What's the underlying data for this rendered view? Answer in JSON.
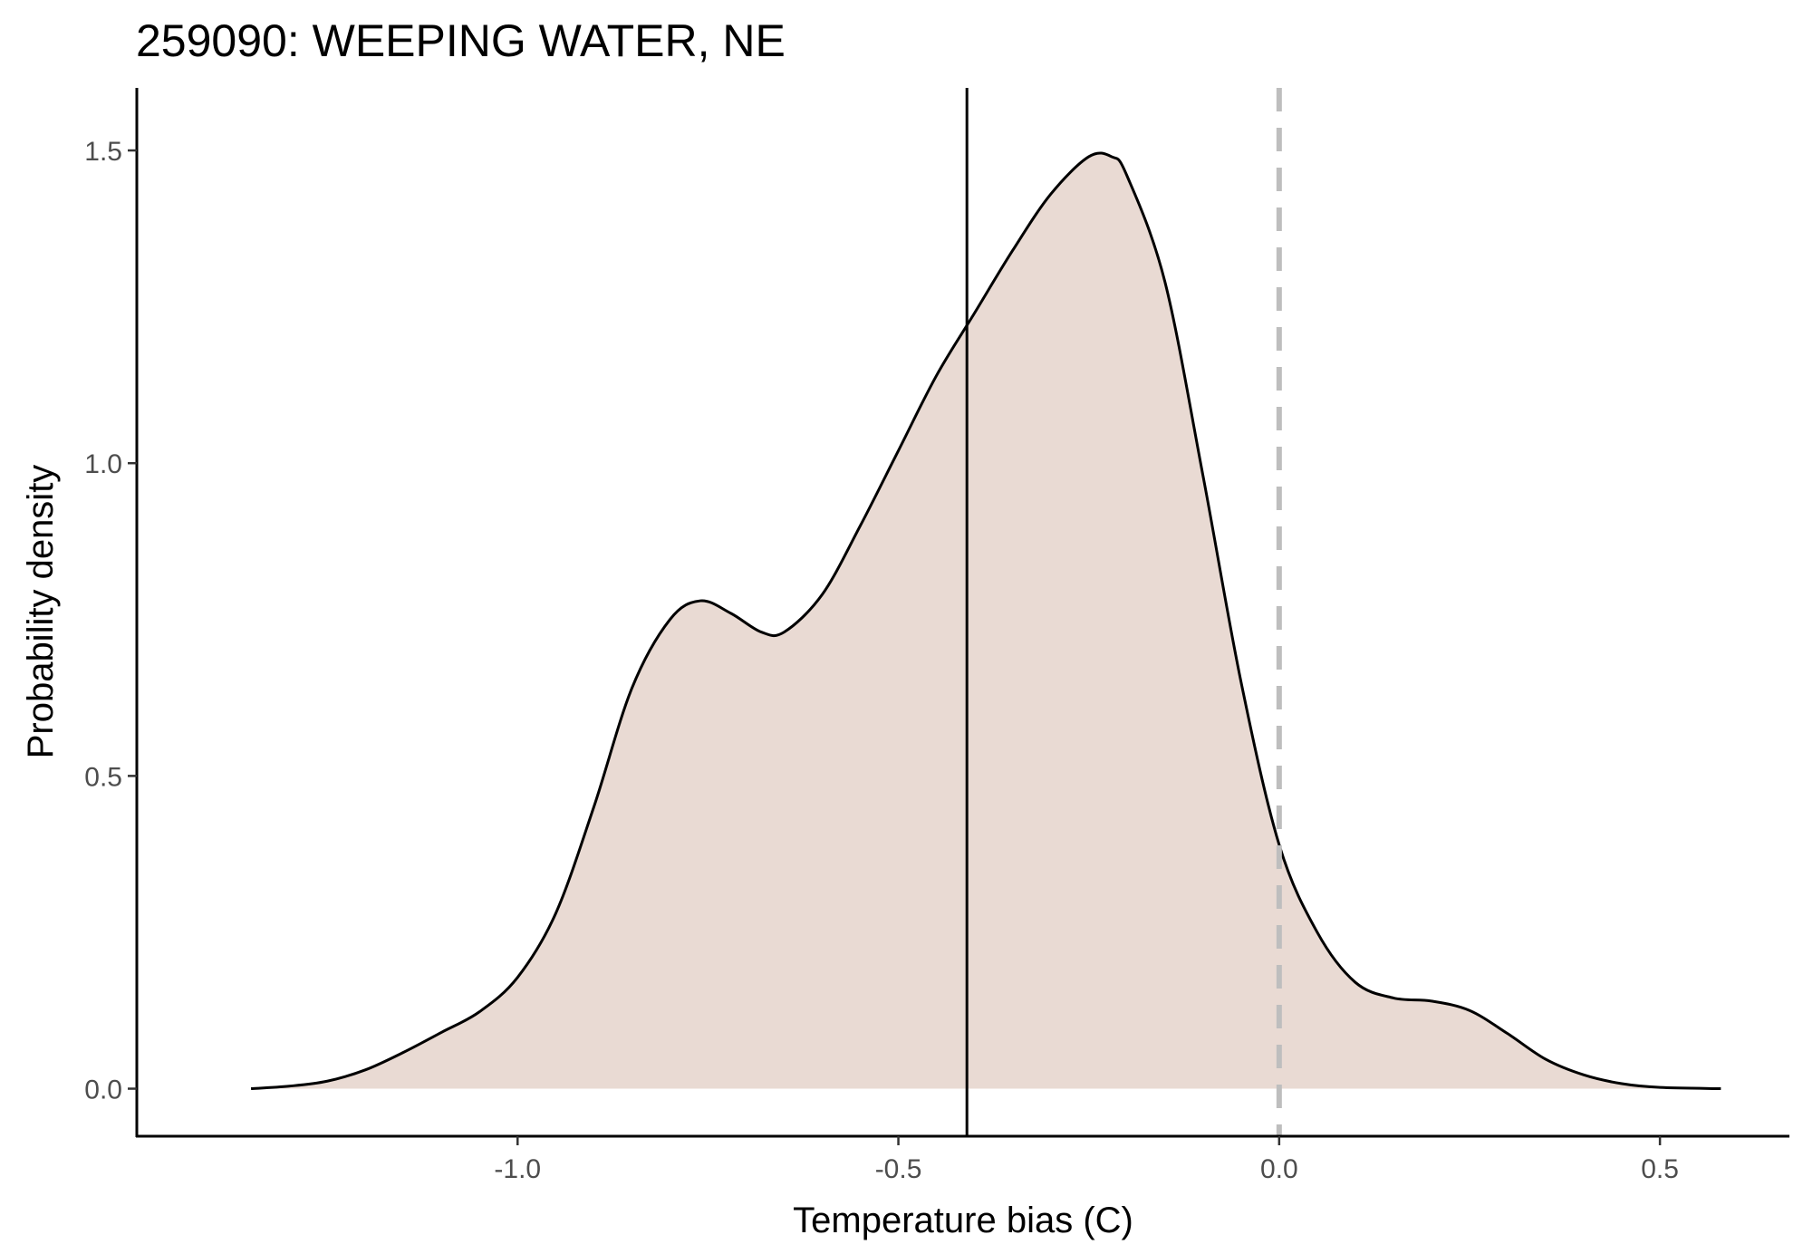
{
  "chart_data": {
    "type": "area",
    "title": "259090: WEEPING WATER, NE",
    "xlabel": "Temperature bias (C)",
    "ylabel": "Probability density",
    "xlim": [
      -1.5,
      0.67
    ],
    "ylim": [
      -0.076,
      1.6
    ],
    "x_ticks": [
      -1.0,
      -0.5,
      0.0,
      0.5
    ],
    "x_tick_labels": [
      "-1.0",
      "-0.5",
      "0.0",
      "0.5"
    ],
    "y_ticks": [
      0.0,
      0.5,
      1.0,
      1.5
    ],
    "y_tick_labels": [
      "0.0",
      "0.5",
      "1.0",
      "1.5"
    ],
    "grid": false,
    "fill_color": "#e9dad3",
    "line_color": "#000000",
    "series": [
      {
        "name": "density",
        "x": [
          -1.35,
          -1.3,
          -1.25,
          -1.2,
          -1.15,
          -1.1,
          -1.05,
          -1.0,
          -0.95,
          -0.9,
          -0.85,
          -0.8,
          -0.76,
          -0.72,
          -0.68,
          -0.65,
          -0.6,
          -0.55,
          -0.5,
          -0.45,
          -0.4,
          -0.35,
          -0.3,
          -0.25,
          -0.22,
          -0.2,
          -0.15,
          -0.1,
          -0.05,
          0.0,
          0.05,
          0.1,
          0.15,
          0.2,
          0.25,
          0.3,
          0.35,
          0.4,
          0.45,
          0.5,
          0.58
        ],
        "y": [
          0.0,
          0.004,
          0.012,
          0.03,
          0.058,
          0.09,
          0.123,
          0.178,
          0.28,
          0.45,
          0.64,
          0.75,
          0.78,
          0.76,
          0.73,
          0.73,
          0.79,
          0.9,
          1.02,
          1.14,
          1.24,
          1.34,
          1.43,
          1.49,
          1.49,
          1.46,
          1.29,
          0.98,
          0.65,
          0.39,
          0.25,
          0.17,
          0.145,
          0.14,
          0.125,
          0.088,
          0.047,
          0.022,
          0.008,
          0.002,
          0.0
        ]
      }
    ],
    "vlines": [
      {
        "name": "mean",
        "x": -0.41,
        "style": "solid",
        "color": "#000000"
      },
      {
        "name": "zero-reference",
        "x": 0.0,
        "style": "dashed",
        "color": "#bebebe"
      }
    ]
  }
}
